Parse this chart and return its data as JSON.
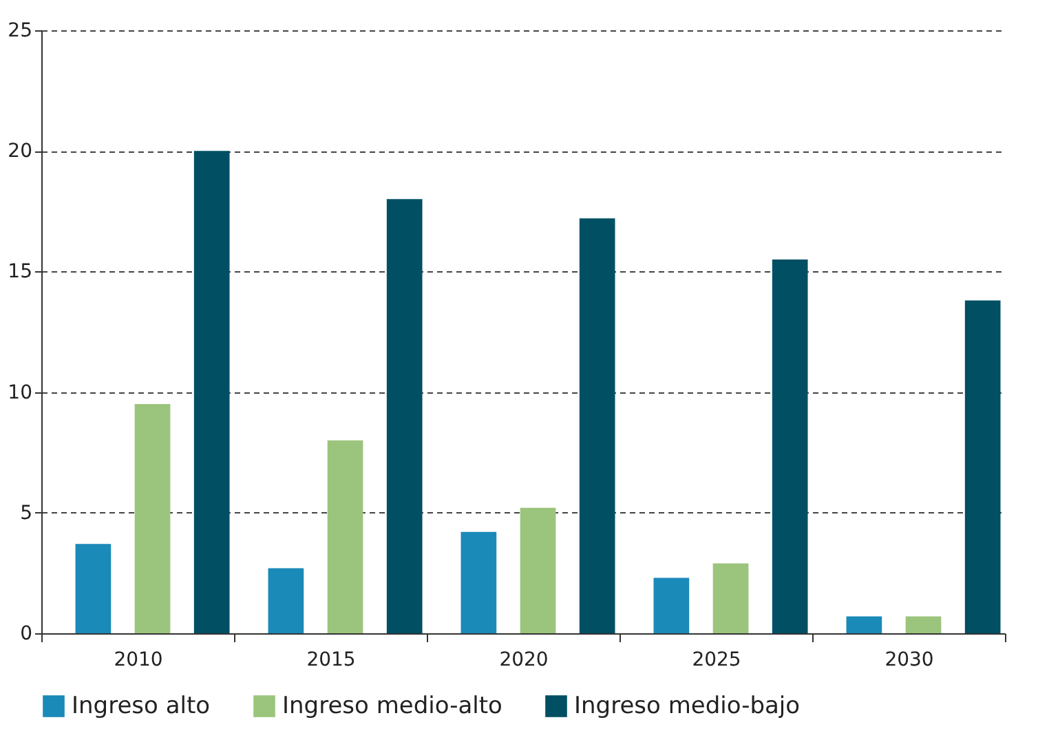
{
  "chart_data": {
    "type": "bar",
    "categories": [
      "2010",
      "2015",
      "2020",
      "2025",
      "2030"
    ],
    "series": [
      {
        "name": "Ingreso alto",
        "color": "#1a8ab8",
        "values": [
          3.7,
          2.7,
          4.2,
          2.3,
          0.7
        ]
      },
      {
        "name": "Ingreso medio-alto",
        "color": "#9bc47c",
        "values": [
          9.5,
          8.0,
          5.2,
          2.9,
          0.7
        ]
      },
      {
        "name": "Ingreso medio-bajo",
        "color": "#004f63",
        "values": [
          20.0,
          18.0,
          17.2,
          15.5,
          13.8
        ]
      }
    ],
    "ylim": [
      0,
      25
    ],
    "yticks": [
      0,
      5,
      10,
      15,
      20,
      25
    ],
    "grid": "y",
    "legend": "bottom"
  }
}
